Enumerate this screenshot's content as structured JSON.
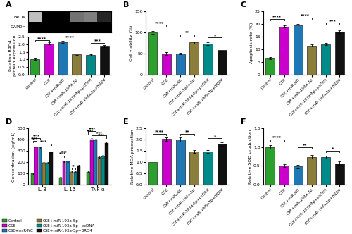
{
  "chart_data": [
    {
      "type": "heatmap",
      "label": "A",
      "categories": [
        null,
        null,
        null,
        null,
        null,
        null
      ],
      "rows": [
        "BRD4",
        "GAPDH"
      ],
      "cells": [
        [
          0.25,
          1.0,
          1.0,
          0.55,
          0.5,
          0.85
        ],
        [
          1.0,
          1.0,
          1.0,
          1.0,
          1.0,
          1.0
        ]
      ],
      "color_range": [
        0,
        1
      ],
      "tick_labels": "y"
    },
    {
      "type": "bar",
      "categories": [
        "Control",
        "CSE",
        "CSE+miR-NC",
        "CSE+miR-193a-5p",
        "CSE+miR-193a-5p+pcDNA",
        "CSE+miR-193a-5p+BRD4"
      ],
      "colors": [
        "#2ca02c",
        "#cc00cc",
        "#1f77b4",
        "#8b7d3a",
        "#008b8b",
        "#111111"
      ],
      "values": [
        1.0,
        2.05,
        2.15,
        1.35,
        1.3,
        1.88
      ],
      "errors": [
        0.05,
        0.07,
        0.07,
        0.06,
        0.05,
        0.07
      ],
      "y_label": "Relative BRD4\nprotein expression",
      "ylim": [
        0,
        2.5
      ],
      "yticks": [
        0.0,
        0.5,
        1.0,
        1.5,
        2.0,
        2.5
      ],
      "annotations": [
        {
          "text": "****",
          "bars": [
            0,
            1
          ],
          "y": 2.25
        },
        {
          "text": "****",
          "bars": [
            2,
            3
          ],
          "y": 2.35
        },
        {
          "text": "***",
          "bars": [
            4,
            5
          ],
          "y": 2.1
        }
      ]
    },
    {
      "type": "bar",
      "label": "B",
      "categories": [
        "Control",
        "CSE",
        "CSE+miR-NC",
        "CSE+miR-193a-5p",
        "CSE+miR-193a-5p+pcDNA",
        "CSE+miR-193a-5p+BRD4"
      ],
      "colors": [
        "#2ca02c",
        "#cc00cc",
        "#1f77b4",
        "#8b7d3a",
        "#008b8b",
        "#111111"
      ],
      "values": [
        100,
        50,
        50,
        76,
        73,
        58
      ],
      "errors": [
        3,
        3,
        2,
        3,
        3,
        3
      ],
      "y_label": "Cell viability (%)",
      "ylim": [
        0,
        150
      ],
      "yticks": [
        0,
        50,
        100,
        150
      ],
      "annotations": [
        {
          "text": "****",
          "bars": [
            0,
            1
          ],
          "y": 118
        },
        {
          "text": "**",
          "bars": [
            2,
            3
          ],
          "y": 95
        },
        {
          "text": "*",
          "bars": [
            4,
            5
          ],
          "y": 88
        }
      ]
    },
    {
      "type": "bar",
      "label": "C",
      "categories": [
        "Control",
        "CSE",
        "CSE+miR-NC",
        "CSE+miR-193a-5p",
        "CSE+miR-193a-5p+pcDNA",
        "CSE+miR-193a-5p+BRD4"
      ],
      "colors": [
        "#2ca02c",
        "#cc00cc",
        "#1f77b4",
        "#8b7d3a",
        "#008b8b",
        "#111111"
      ],
      "values": [
        6.5,
        19.0,
        19.5,
        11.5,
        12.0,
        17.0
      ],
      "errors": [
        0.4,
        0.5,
        0.5,
        0.4,
        0.4,
        0.5
      ],
      "y_label": "Apoptosis rate (%)",
      "ylim": [
        0,
        25
      ],
      "yticks": [
        0,
        5,
        10,
        15,
        20,
        25
      ],
      "annotations": [
        {
          "text": "****",
          "bars": [
            0,
            1
          ],
          "y": 22.0
        },
        {
          "text": "****",
          "bars": [
            2,
            3
          ],
          "y": 22.5
        },
        {
          "text": "***",
          "bars": [
            4,
            5
          ],
          "y": 20.5
        }
      ]
    },
    {
      "type": "grouped_bar",
      "label": "D",
      "categories": [
        "IL-8",
        "IL-1β",
        "TNF-α"
      ],
      "series": [
        {
          "name": "Control",
          "color": "#2ca02c",
          "values": [
            100,
            65,
            115
          ],
          "errors": [
            8,
            5,
            8
          ]
        },
        {
          "name": "CSE",
          "color": "#cc00cc",
          "values": [
            330,
            205,
            400
          ],
          "errors": [
            10,
            8,
            12
          ]
        },
        {
          "name": "CSE+miR-NC",
          "color": "#1f77b4",
          "values": [
            330,
            205,
            395
          ],
          "errors": [
            10,
            8,
            12
          ]
        },
        {
          "name": "CSE+miR-193a-5p",
          "color": "#8b7d3a",
          "values": [
            195,
            110,
            245
          ],
          "errors": [
            8,
            6,
            10
          ]
        },
        {
          "name": "CSE+miR-193a-5p+pcDNA",
          "color": "#008b8b",
          "values": [
            195,
            115,
            250
          ],
          "errors": [
            8,
            6,
            10
          ]
        },
        {
          "name": "CSE+miR-193a-5p+BRD4",
          "color": "#111111",
          "values": [
            285,
            170,
            370
          ],
          "errors": [
            10,
            8,
            12
          ]
        }
      ],
      "y_label": "Concentration (pg/mL)",
      "ylim": [
        0,
        500
      ],
      "yticks": [
        0,
        100,
        200,
        300,
        400,
        500
      ],
      "legend": "lower left",
      "annotations": [
        {
          "text": "****",
          "category": 0,
          "bars": [
            0,
            1
          ],
          "y": 390
        },
        {
          "text": "****",
          "category": 0,
          "bars": [
            0,
            2
          ],
          "y": 415
        },
        {
          "text": "****",
          "category": 0,
          "bars": [
            1,
            5
          ],
          "y": 365
        },
        {
          "text": "****",
          "category": 1,
          "bars": [
            0,
            1
          ],
          "y": 258
        },
        {
          "text": "****",
          "category": 1,
          "bars": [
            0,
            2
          ],
          "y": 272
        },
        {
          "text": "**",
          "category": 1,
          "bars": [
            3,
            4
          ],
          "y": 148
        },
        {
          "text": "****",
          "category": 2,
          "bars": [
            0,
            1
          ],
          "y": 460
        },
        {
          "text": "****",
          "category": 2,
          "bars": [
            0,
            2
          ],
          "y": 478
        },
        {
          "text": "****",
          "category": 2,
          "bars": [
            1,
            5
          ],
          "y": 440
        },
        {
          "text": "****",
          "category": 2,
          "bars": [
            2,
            5
          ],
          "y": 422
        }
      ]
    },
    {
      "type": "bar",
      "label": "E",
      "categories": [
        "Control",
        "CSE",
        "CSE+miR-NC",
        "CSE+miR-193a-5p",
        "CSE+miR-193a-5p+pcDNA",
        "CSE+miR-193a-5p+BRD4"
      ],
      "colors": [
        "#2ca02c",
        "#cc00cc",
        "#1f77b4",
        "#8b7d3a",
        "#008b8b",
        "#111111"
      ],
      "values": [
        1.0,
        2.02,
        2.0,
        1.46,
        1.46,
        1.8
      ],
      "errors": [
        0.06,
        0.08,
        0.08,
        0.06,
        0.06,
        0.07
      ],
      "y_label": "Relative MDA production",
      "ylim": [
        0,
        2.5
      ],
      "yticks": [
        0.0,
        0.5,
        1.0,
        1.5,
        2.0,
        2.5
      ],
      "annotations": [
        {
          "text": "****",
          "bars": [
            0,
            1
          ],
          "y": 2.25
        },
        {
          "text": "**",
          "bars": [
            2,
            3
          ],
          "y": 2.25
        },
        {
          "text": "*",
          "bars": [
            4,
            5
          ],
          "y": 2.05
        }
      ]
    },
    {
      "type": "bar",
      "label": "F",
      "categories": [
        "Control",
        "CSE",
        "CSE+miR-NC",
        "CSE+miR-193a-5p",
        "CSE+miR-193a-5p+pcDNA",
        "CSE+miR-193a-5p+BRD4"
      ],
      "colors": [
        "#2ca02c",
        "#cc00cc",
        "#1f77b4",
        "#8b7d3a",
        "#008b8b",
        "#111111"
      ],
      "values": [
        1.0,
        0.5,
        0.48,
        0.74,
        0.73,
        0.57
      ],
      "errors": [
        0.05,
        0.04,
        0.04,
        0.04,
        0.04,
        0.04
      ],
      "y_label": "Relative SOD production",
      "ylim": [
        0,
        1.5
      ],
      "yticks": [
        0.0,
        0.5,
        1.0,
        1.5
      ],
      "annotations": [
        {
          "text": "****",
          "bars": [
            0,
            1
          ],
          "y": 1.2
        },
        {
          "text": "**",
          "bars": [
            2,
            3
          ],
          "y": 1.0
        },
        {
          "text": "*",
          "bars": [
            4,
            5
          ],
          "y": 0.9
        }
      ]
    }
  ]
}
